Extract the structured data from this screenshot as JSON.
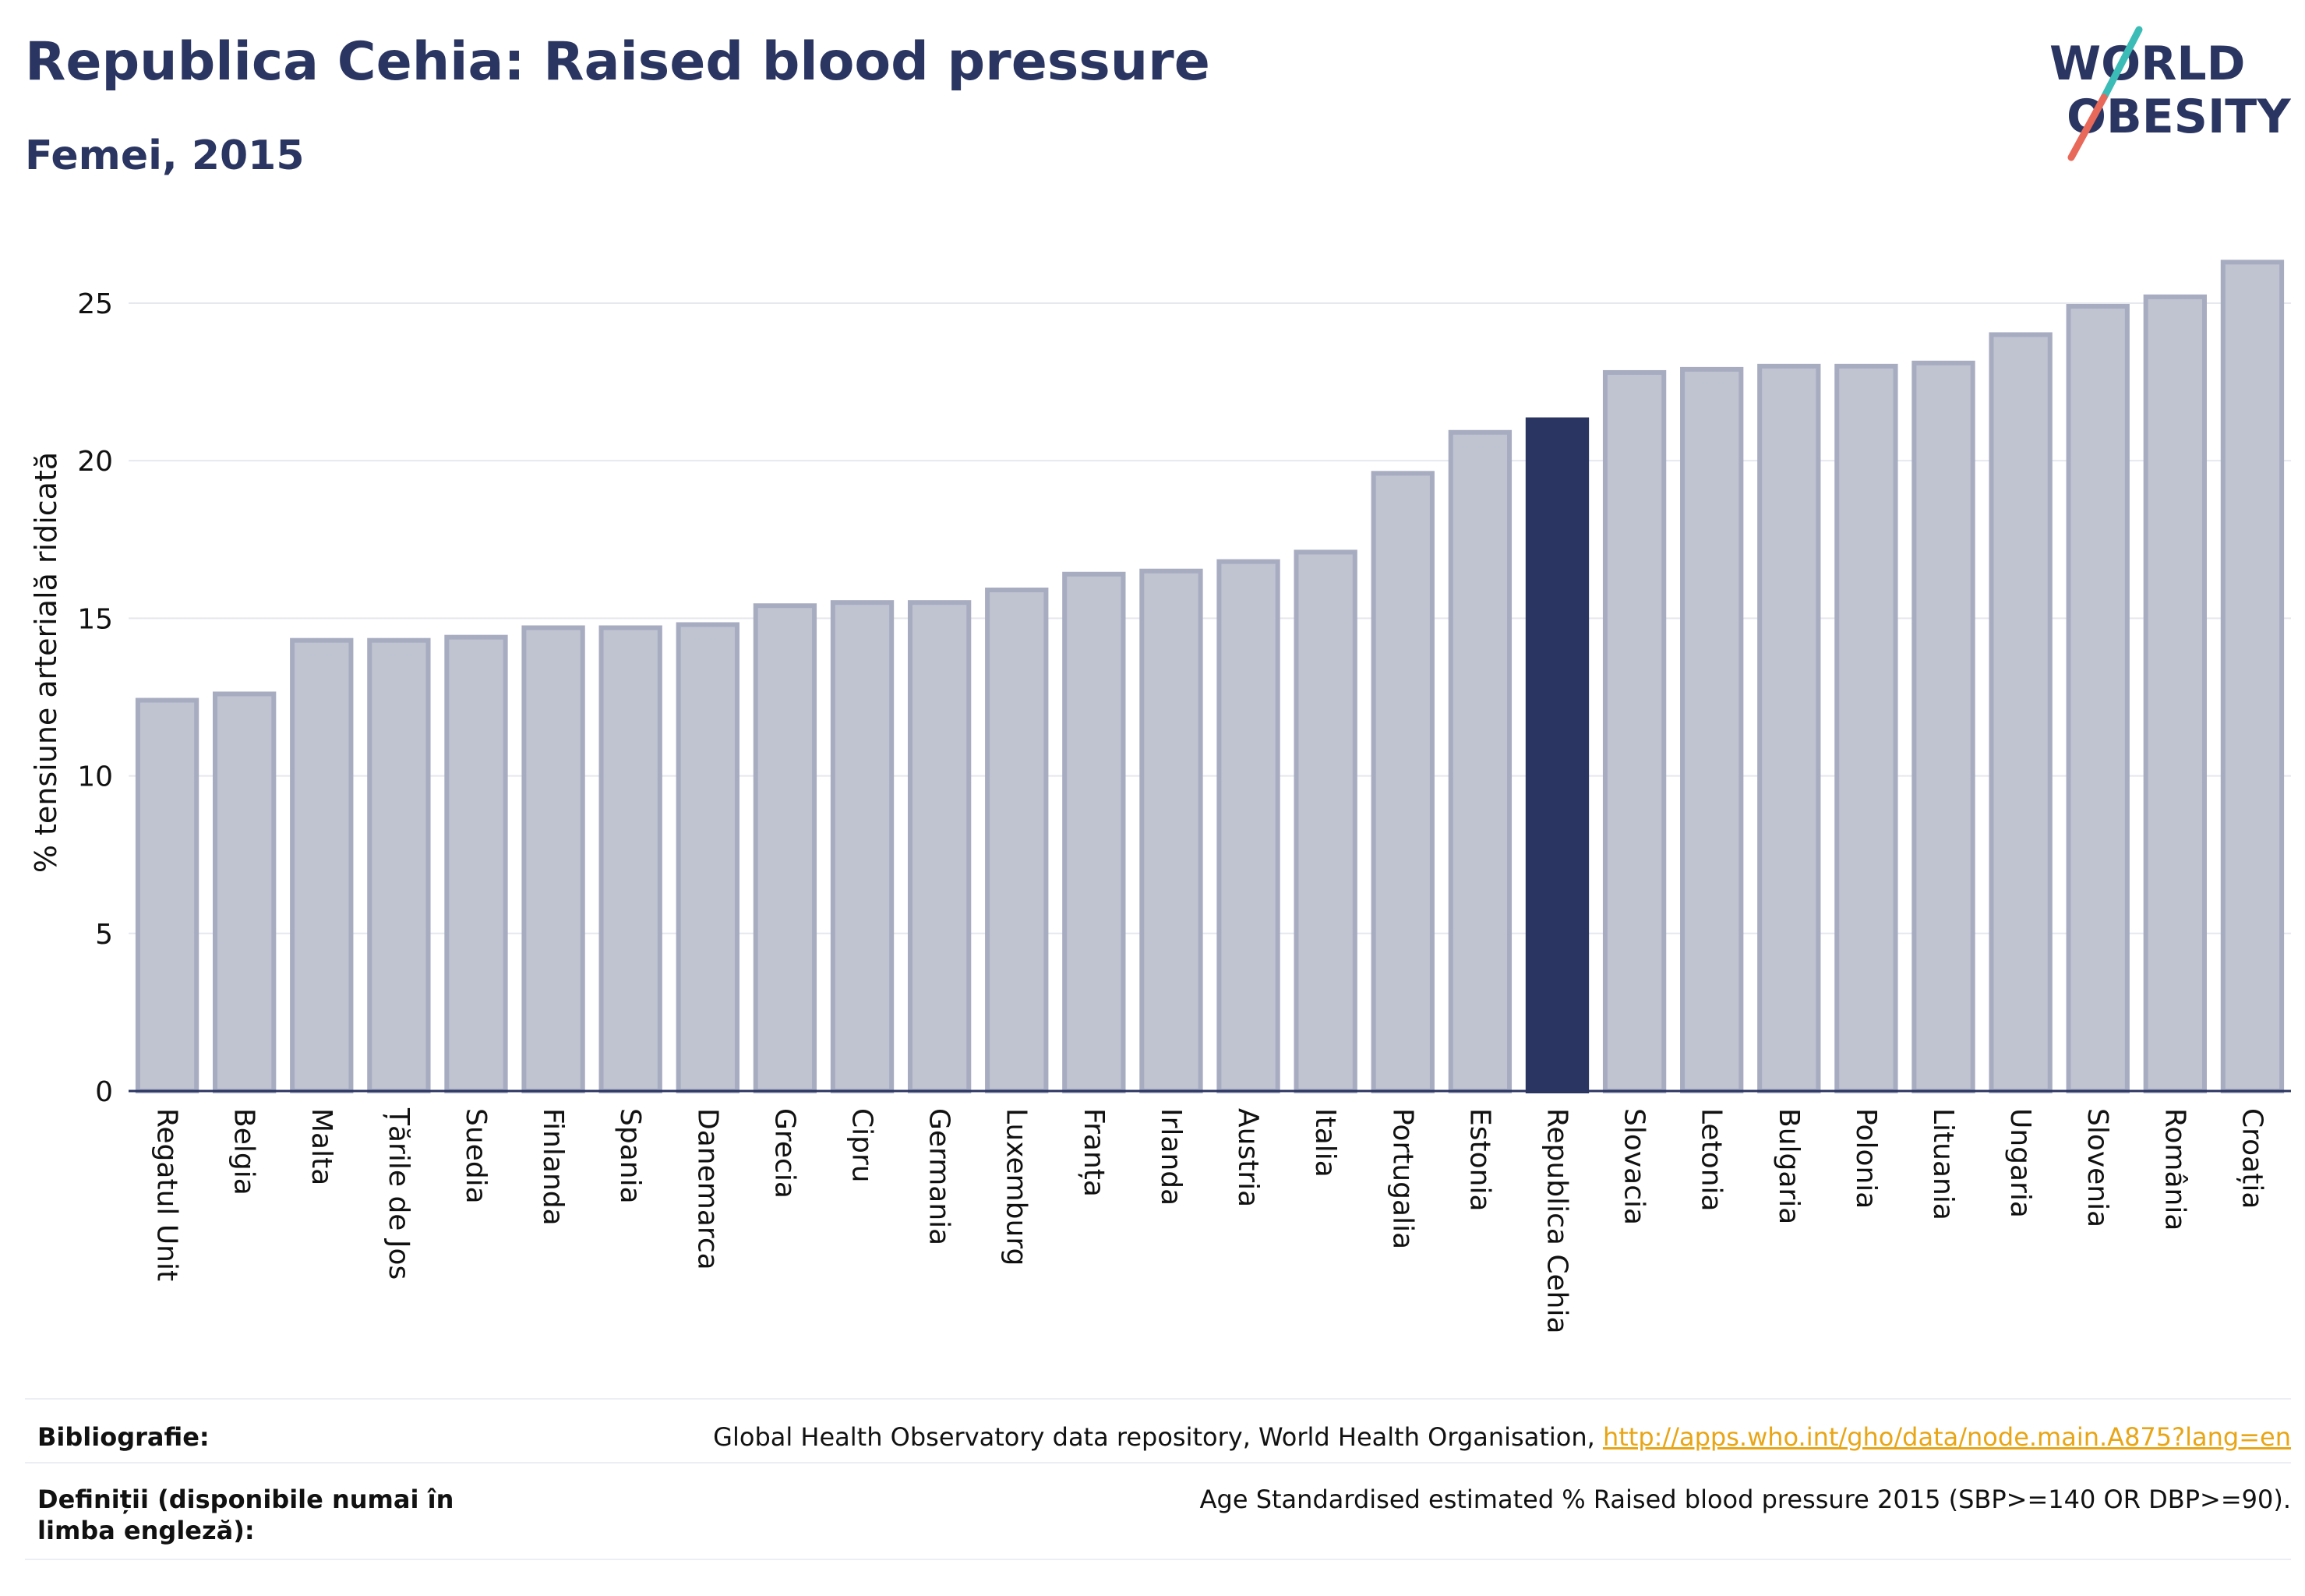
{
  "header": {
    "title": "Republica Cehia: Raised blood pressure",
    "subtitle": "Femei, 2015",
    "logo_line1": "WORLD",
    "logo_line2": "OBESITY"
  },
  "colors": {
    "bar_default": "#c0c3d0",
    "bar_default_border": "#a7acc1",
    "bar_highlight": "#2a3561",
    "grid": "#e6e8ee",
    "axis": "#2a3561",
    "logo_teal": "#3cbcb6",
    "logo_coral": "#e8685a",
    "link": "#e8a516"
  },
  "chart_data": {
    "type": "bar",
    "ylabel": "% tensiune arterială ridicată",
    "ylim": [
      0,
      27.2
    ],
    "yticks": [
      "0",
      "5",
      "10",
      "15",
      "20",
      "25"
    ],
    "grid": true,
    "highlight": "Republica Cehia",
    "categories": [
      "Regatul Unit",
      "Belgia",
      "Malta",
      "Țările de Jos",
      "Suedia",
      "Finlanda",
      "Spania",
      "Danemarca",
      "Grecia",
      "Cipru",
      "Germania",
      "Luxemburg",
      "Franța",
      "Irlanda",
      "Austria",
      "Italia",
      "Portugalia",
      "Estonia",
      "Republica Cehia",
      "Slovacia",
      "Letonia",
      "Bulgaria",
      "Polonia",
      "Lituania",
      "Ungaria",
      "Slovenia",
      "România",
      "Croația"
    ],
    "values": [
      12.4,
      12.6,
      14.3,
      14.3,
      14.4,
      14.7,
      14.7,
      14.8,
      15.4,
      15.5,
      15.5,
      15.9,
      16.4,
      16.5,
      16.8,
      17.1,
      19.6,
      20.9,
      21.3,
      22.8,
      22.9,
      23.0,
      23.0,
      23.1,
      24.0,
      24.9,
      25.2,
      26.3
    ]
  },
  "footer": {
    "bibliography_label": "Bibliografie:",
    "bibliography_text": "Global Health Observatory data repository, World Health Organisation, ",
    "bibliography_link": "http://apps.who.int/gho/data/node.main.A875?lang=en",
    "definitions_label": "Definiții (disponibile numai în limba engleză):",
    "definitions_text": "Age Standardised estimated % Raised blood pressure 2015 (SBP>=140 OR DBP>=90)."
  }
}
